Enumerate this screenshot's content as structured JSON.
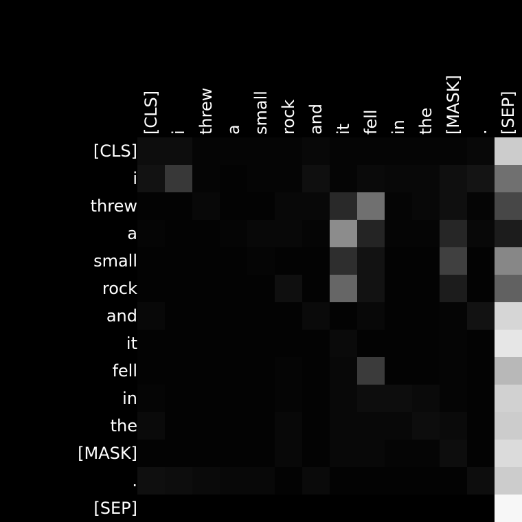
{
  "chart_data": {
    "type": "heatmap",
    "title": "",
    "xlabel": "",
    "ylabel": "",
    "x_tokens": [
      "[CLS]",
      "i",
      "threw",
      "a",
      "small",
      "rock",
      "and",
      "it",
      "fell",
      "in",
      "the",
      "[MASK]",
      ".",
      "[SEP]"
    ],
    "y_tokens": [
      "[CLS]",
      "i",
      "threw",
      "a",
      "small",
      "rock",
      "and",
      "it",
      "fell",
      "in",
      "the",
      "[MASK]",
      ".",
      "[SEP]"
    ],
    "colormap": "grayscale",
    "value_range": [
      0,
      1
    ],
    "values": [
      [
        0.05,
        0.05,
        0.02,
        0.02,
        0.02,
        0.02,
        0.03,
        0.02,
        0.02,
        0.02,
        0.02,
        0.02,
        0.03,
        0.8
      ],
      [
        0.07,
        0.22,
        0.02,
        0.01,
        0.02,
        0.02,
        0.06,
        0.02,
        0.04,
        0.03,
        0.03,
        0.06,
        0.08,
        0.44
      ],
      [
        0.01,
        0.01,
        0.03,
        0.01,
        0.01,
        0.03,
        0.03,
        0.16,
        0.44,
        0.02,
        0.03,
        0.06,
        0.02,
        0.28
      ],
      [
        0.02,
        0.01,
        0.01,
        0.02,
        0.03,
        0.03,
        0.02,
        0.55,
        0.14,
        0.02,
        0.02,
        0.15,
        0.03,
        0.11
      ],
      [
        0.01,
        0.01,
        0.01,
        0.01,
        0.02,
        0.01,
        0.01,
        0.18,
        0.07,
        0.01,
        0.01,
        0.25,
        0.01,
        0.53
      ],
      [
        0.01,
        0.01,
        0.01,
        0.01,
        0.01,
        0.06,
        0.01,
        0.4,
        0.07,
        0.01,
        0.01,
        0.11,
        0.01,
        0.38
      ],
      [
        0.03,
        0.01,
        0.01,
        0.01,
        0.01,
        0.01,
        0.04,
        0.01,
        0.03,
        0.01,
        0.01,
        0.02,
        0.07,
        0.84
      ],
      [
        0.01,
        0.01,
        0.01,
        0.01,
        0.01,
        0.01,
        0.01,
        0.04,
        0.01,
        0.01,
        0.01,
        0.02,
        0.01,
        0.9
      ],
      [
        0.01,
        0.01,
        0.01,
        0.01,
        0.01,
        0.02,
        0.01,
        0.03,
        0.23,
        0.01,
        0.01,
        0.02,
        0.01,
        0.72
      ],
      [
        0.02,
        0.01,
        0.01,
        0.01,
        0.01,
        0.02,
        0.01,
        0.03,
        0.05,
        0.05,
        0.04,
        0.02,
        0.01,
        0.82
      ],
      [
        0.04,
        0.01,
        0.01,
        0.01,
        0.01,
        0.03,
        0.01,
        0.03,
        0.03,
        0.03,
        0.05,
        0.04,
        0.01,
        0.8
      ],
      [
        0.01,
        0.01,
        0.01,
        0.01,
        0.01,
        0.03,
        0.01,
        0.03,
        0.03,
        0.02,
        0.02,
        0.05,
        0.01,
        0.86
      ],
      [
        0.06,
        0.05,
        0.04,
        0.03,
        0.03,
        0.01,
        0.04,
        0.01,
        0.01,
        0.01,
        0.01,
        0.01,
        0.05,
        0.8
      ],
      [
        0.0,
        0.0,
        0.0,
        0.0,
        0.0,
        0.0,
        0.0,
        0.0,
        0.0,
        0.0,
        0.0,
        0.0,
        0.0,
        0.97
      ]
    ]
  }
}
